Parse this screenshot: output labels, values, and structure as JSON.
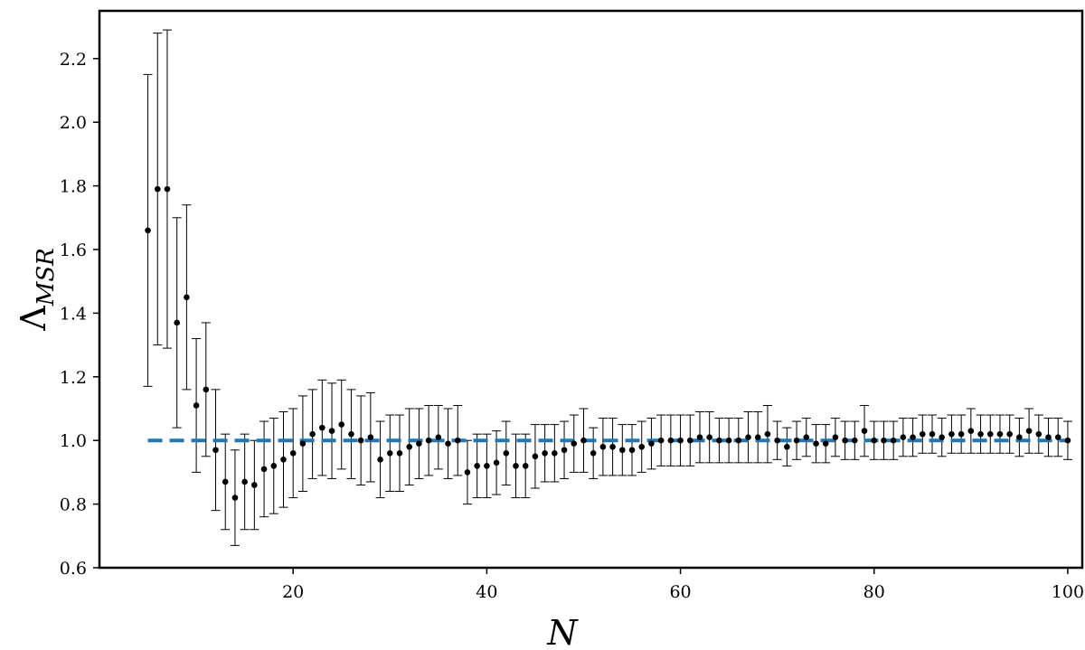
{
  "chart_data": {
    "type": "scatter",
    "title": "",
    "xlabel": "N",
    "ylabel_main": "Λ",
    "ylabel_sub": "MSR",
    "xlim": [
      0,
      101.5
    ],
    "ylim": [
      0.6,
      2.35
    ],
    "xticks": [
      20,
      40,
      60,
      80,
      100
    ],
    "xtick_labels": [
      "20",
      "40",
      "60",
      "80",
      "100"
    ],
    "yticks": [
      0.6,
      0.8,
      1.0,
      1.2,
      1.4,
      1.6,
      1.8,
      2.0,
      2.2
    ],
    "ytick_labels": [
      "0.6",
      "0.8",
      "1.0",
      "1.2",
      "1.4",
      "1.6",
      "1.8",
      "2.0",
      "2.2"
    ],
    "grid": false,
    "reference_line": {
      "y": 1.0,
      "style": "dashed",
      "color": "#1f77b4"
    },
    "marker_color": "#000000",
    "errorbar_color": "#000000",
    "x": [
      5,
      6,
      7,
      8,
      9,
      10,
      11,
      12,
      13,
      14,
      15,
      16,
      17,
      18,
      19,
      20,
      21,
      22,
      23,
      24,
      25,
      26,
      27,
      28,
      29,
      30,
      31,
      32,
      33,
      34,
      35,
      36,
      37,
      38,
      39,
      40,
      41,
      42,
      43,
      44,
      45,
      46,
      47,
      48,
      49,
      50,
      51,
      52,
      53,
      54,
      55,
      56,
      57,
      58,
      59,
      60,
      61,
      62,
      63,
      64,
      65,
      66,
      67,
      68,
      69,
      70,
      71,
      72,
      73,
      74,
      75,
      76,
      77,
      78,
      79,
      80,
      81,
      82,
      83,
      84,
      85,
      86,
      87,
      88,
      89,
      90,
      91,
      92,
      93,
      94,
      95,
      96,
      97,
      98,
      99,
      100
    ],
    "y": [
      1.66,
      1.79,
      1.79,
      1.37,
      1.45,
      1.11,
      1.16,
      0.97,
      0.87,
      0.82,
      0.87,
      0.86,
      0.91,
      0.92,
      0.94,
      0.96,
      0.99,
      1.02,
      1.04,
      1.03,
      1.05,
      1.02,
      1.0,
      1.01,
      0.94,
      0.96,
      0.96,
      0.98,
      0.99,
      1.0,
      1.01,
      0.99,
      1.0,
      0.9,
      0.92,
      0.92,
      0.93,
      0.96,
      0.92,
      0.92,
      0.95,
      0.96,
      0.96,
      0.97,
      0.99,
      1.0,
      0.96,
      0.98,
      0.98,
      0.97,
      0.97,
      0.98,
      0.99,
      1.0,
      1.0,
      1.0,
      1.0,
      1.01,
      1.01,
      1.0,
      1.0,
      1.0,
      1.01,
      1.01,
      1.02,
      1.0,
      0.98,
      1.0,
      1.01,
      0.99,
      0.99,
      1.01,
      1.0,
      1.0,
      1.03,
      1.0,
      1.0,
      1.0,
      1.01,
      1.01,
      1.02,
      1.02,
      1.01,
      1.02,
      1.02,
      1.03,
      1.02,
      1.02,
      1.02,
      1.02,
      1.01,
      1.03,
      1.02,
      1.01,
      1.01,
      1.0
    ],
    "yerr": [
      0.49,
      0.49,
      0.5,
      0.33,
      0.29,
      0.21,
      0.21,
      0.19,
      0.15,
      0.15,
      0.15,
      0.14,
      0.15,
      0.15,
      0.15,
      0.14,
      0.15,
      0.14,
      0.15,
      0.15,
      0.14,
      0.14,
      0.14,
      0.14,
      0.12,
      0.12,
      0.12,
      0.12,
      0.11,
      0.11,
      0.1,
      0.11,
      0.11,
      0.1,
      0.1,
      0.1,
      0.1,
      0.1,
      0.1,
      0.1,
      0.1,
      0.09,
      0.09,
      0.09,
      0.09,
      0.1,
      0.08,
      0.09,
      0.09,
      0.08,
      0.08,
      0.08,
      0.08,
      0.08,
      0.08,
      0.08,
      0.08,
      0.08,
      0.08,
      0.07,
      0.07,
      0.07,
      0.08,
      0.08,
      0.09,
      0.06,
      0.06,
      0.06,
      0.06,
      0.06,
      0.06,
      0.06,
      0.06,
      0.06,
      0.08,
      0.06,
      0.06,
      0.06,
      0.06,
      0.06,
      0.06,
      0.06,
      0.06,
      0.06,
      0.06,
      0.07,
      0.06,
      0.06,
      0.06,
      0.06,
      0.06,
      0.07,
      0.06,
      0.06,
      0.06,
      0.06
    ]
  }
}
